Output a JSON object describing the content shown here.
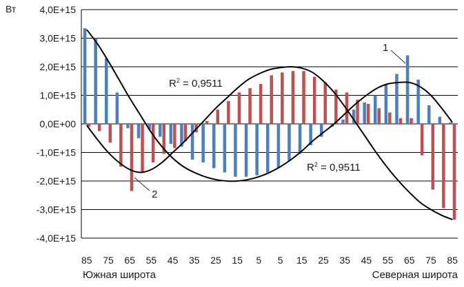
{
  "chart_data": {
    "type": "bar",
    "unit": "Вт",
    "ylim": [
      -4000000000000000.0,
      4000000000000000.0
    ],
    "y_ticks": [
      "4,0E+15",
      "3,0E+15",
      "2,0E+15",
      "1,0E+15",
      "0,0E+00",
      "-1,0E+15",
      "-2,0E+15",
      "-3,0E+15",
      "-4,0E+15"
    ],
    "y_tick_values": [
      4000000000000000.0,
      3000000000000000.0,
      2000000000000000.0,
      1000000000000000.0,
      0,
      -1000000000000000.0,
      -2000000000000000.0,
      -3000000000000000.0,
      -4000000000000000.0
    ],
    "categories": [
      "85",
      "80",
      "75",
      "70",
      "65",
      "60",
      "55",
      "50",
      "45",
      "40",
      "35",
      "30",
      "25",
      "20",
      "15",
      "10",
      "5",
      "0",
      "5",
      "10",
      "15",
      "20",
      "25",
      "30",
      "35",
      "40",
      "45",
      "50",
      "55",
      "60",
      "65",
      "70",
      "75",
      "80",
      "85"
    ],
    "x_tick_labels": [
      "85",
      "75",
      "65",
      "55",
      "45",
      "35",
      "25",
      "15",
      "5",
      "5",
      "15",
      "25",
      "35",
      "45",
      "55",
      "65",
      "75",
      "85"
    ],
    "hemisphere_labels": {
      "south": "Южная широта",
      "north": "Северная широта"
    },
    "grid": true,
    "series": [
      {
        "color": "#4a7fc1",
        "values": [
          3350000000000000.0,
          3000000000000000.0,
          2300000000000000.0,
          1100000000000000.0,
          -150000000000000.0,
          -500000000000000.0,
          -200000000000000.0,
          -450000000000000.0,
          -700000000000000.0,
          -800000000000000.0,
          -1250000000000000.0,
          -1350000000000000.0,
          -1550000000000000.0,
          -1700000000000000.0,
          -1850000000000000.0,
          -1850000000000000.0,
          -1800000000000000.0,
          -1700000000000000.0,
          -1550000000000000.0,
          -1300000000000000.0,
          -1050000000000000.0,
          -750000000000000.0,
          -450000000000000.0,
          -100000000000000.0,
          150000000000000.0,
          500000000000000.0,
          750000000000000.0,
          1000000000000000.0,
          1400000000000000.0,
          1750000000000000.0,
          2400000000000000.0,
          1550000000000000.0,
          650000000000000.0,
          250000000000000.0,
          50000000000000.0
        ]
      },
      {
        "color": "#c0504d",
        "values": [
          -100000000000000.0,
          -250000000000000.0,
          -650000000000000.0,
          -1500000000000000.0,
          -2350000000000000.0,
          -1700000000000000.0,
          -1350000000000000.0,
          -1050000000000000.0,
          -850000000000000.0,
          -600000000000000.0,
          -300000000000000.0,
          100000000000000.0,
          500000000000000.0,
          800000000000000.0,
          1100000000000000.0,
          1250000000000000.0,
          1400000000000000.0,
          1700000000000000.0,
          1800000000000000.0,
          1850000000000000.0,
          1850000000000000.0,
          1650000000000000.0,
          1450000000000000.0,
          1200000000000000.0,
          1100000000000000.0,
          850000000000000.0,
          700000000000000.0,
          550000000000000.0,
          400000000000000.0,
          200000000000000.0,
          200000000000000.0,
          -1100000000000000.0,
          -2300000000000000.0,
          -2950000000000000.0,
          -3350000000000000.0
        ]
      }
    ],
    "trend_lines": [
      {
        "label": "R² = 0,9511",
        "number": "1",
        "points": [
          3300000000000000.0,
          2800000000000000.0,
          2200000000000000.0,
          1550000000000000.0,
          900000000000000.0,
          300000000000000.0,
          -300000000000000.0,
          -800000000000000.0,
          -1200000000000000.0,
          -1500000000000000.0,
          -1700000000000000.0,
          -1850000000000000.0,
          -1950000000000000.0,
          -2000000000000000.0,
          -2000000000000000.0,
          -1950000000000000.0,
          -1850000000000000.0,
          -1700000000000000.0,
          -1500000000000000.0,
          -1250000000000000.0,
          -950000000000000.0,
          -600000000000000.0,
          -300000000000000.0,
          0.0,
          350000000000000.0,
          700000000000000.0,
          1000000000000000.0,
          1250000000000000.0,
          1400000000000000.0,
          1450000000000000.0,
          1450000000000000.0,
          1300000000000000.0,
          1000000000000000.0,
          550000000000000.0,
          50000000000000.0
        ]
      },
      {
        "label": "R² = 0,9511",
        "number": "2",
        "points": [
          -50000000000000.0,
          -550000000000000.0,
          -1000000000000000.0,
          -1350000000000000.0,
          -1600000000000000.0,
          -1700000000000000.0,
          -1600000000000000.0,
          -1350000000000000.0,
          -1000000000000000.0,
          -650000000000000.0,
          -250000000000000.0,
          150000000000000.0,
          550000000000000.0,
          900000000000000.0,
          1250000000000000.0,
          1550000000000000.0,
          1750000000000000.0,
          1900000000000000.0,
          1970000000000000.0,
          2000000000000000.0,
          1950000000000000.0,
          1800000000000000.0,
          1500000000000000.0,
          1100000000000000.0,
          600000000000000.0,
          50000000000000.0,
          -500000000000000.0,
          -1050000000000000.0,
          -1550000000000000.0,
          -2000000000000000.0,
          -2400000000000000.0,
          -2750000000000000.0,
          -3000000000000000.0,
          -3200000000000000.0,
          -3350000000000000.0
        ]
      }
    ]
  }
}
